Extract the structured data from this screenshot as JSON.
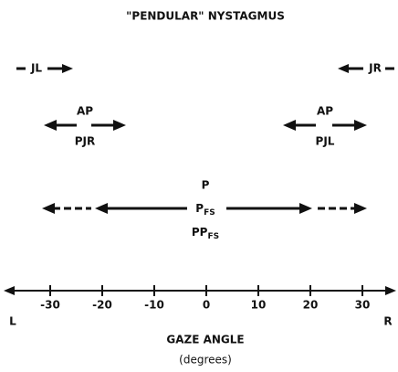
{
  "title": "\"PENDULAR\" NYSTAGMUS",
  "top_row": {
    "left": "JL",
    "right": "JR"
  },
  "middle_row": {
    "left_top": "AP",
    "left_bottom": "PJR",
    "right_top": "AP",
    "right_bottom": "PJL"
  },
  "center_lines": [
    {
      "main": "P"
    },
    {
      "main": "P",
      "sub": "FS"
    },
    {
      "main": "PP",
      "sub": "FS"
    }
  ],
  "axis": {
    "ticks": [
      "-30",
      "-20",
      "-10",
      "0",
      "10",
      "20",
      "30"
    ],
    "left_end": "L",
    "right_end": "R",
    "label": "GAZE ANGLE",
    "unit": "(degrees)"
  }
}
